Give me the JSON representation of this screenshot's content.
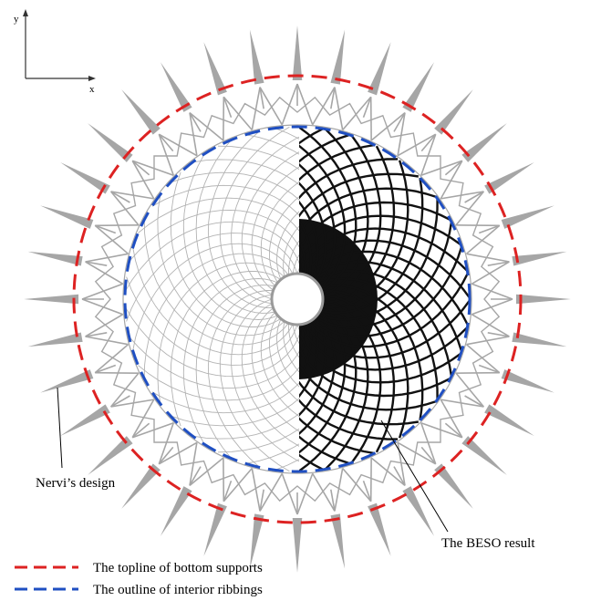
{
  "axes": {
    "y_label": "y",
    "x_label": "x"
  },
  "annotations": {
    "nervi": "Nervi’s design",
    "beso": "The BESO result"
  },
  "legend": [
    {
      "label": "The topline of bottom supports",
      "color": "#dd2222"
    },
    {
      "label": "The outline of interior ribbings",
      "color": "#1f4fc2"
    }
  ],
  "structure": {
    "support_count": 36,
    "rib_family_count": 36,
    "left_half": "Nervi’s design",
    "right_half": "The BESO result"
  },
  "colors": {
    "nervi_ribs": "#b3b3b3",
    "supports": "#a6a6a6",
    "beso_ribs": "#111111",
    "topline": "#dd2222",
    "outline": "#1f4fc2"
  }
}
